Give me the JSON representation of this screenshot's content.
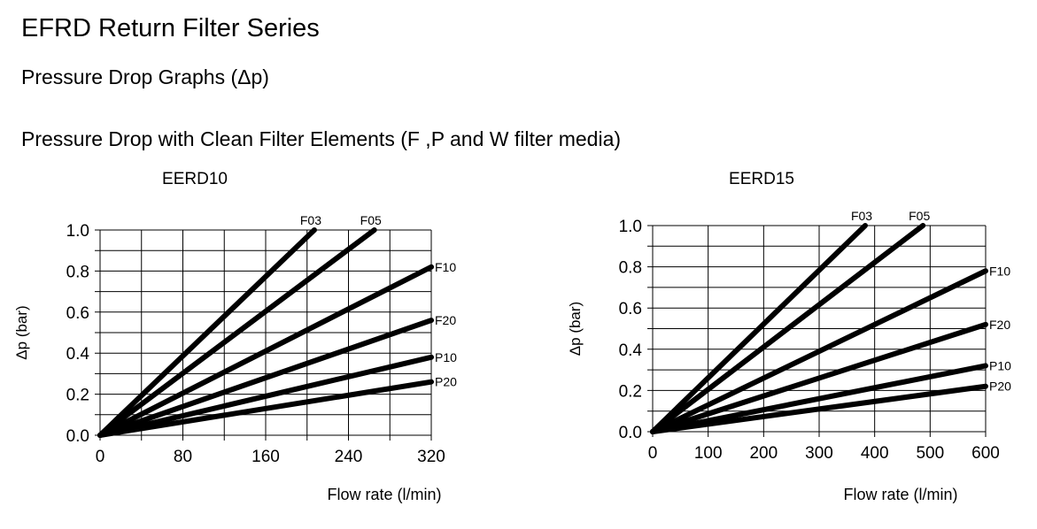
{
  "header": {
    "title": "EFRD Return Filter Series",
    "subtitle": "Pressure Drop Graphs (Δp)",
    "section": "Pressure Drop with Clean Filter Elements (F ,P and W filter media)"
  },
  "chart_data": [
    {
      "type": "line",
      "title": "EERD10",
      "xlabel": "Flow rate (l/min)",
      "ylabel": "Δp (bar)",
      "xlim": [
        0,
        320
      ],
      "ylim": [
        0,
        1.0
      ],
      "xticks": [
        0,
        80,
        160,
        240,
        320
      ],
      "xgrid_step": 40,
      "yticks": [
        0.0,
        0.2,
        0.4,
        0.6,
        0.8,
        1.0
      ],
      "ygrid_step": 0.1,
      "grid": true,
      "series": [
        {
          "name": "F03",
          "x": [
            0,
            207
          ],
          "y": [
            0,
            1.0
          ]
        },
        {
          "name": "F05",
          "x": [
            0,
            265
          ],
          "y": [
            0,
            1.0
          ]
        },
        {
          "name": "F10",
          "x": [
            0,
            320
          ],
          "y": [
            0,
            0.82
          ]
        },
        {
          "name": "F20",
          "x": [
            0,
            320
          ],
          "y": [
            0,
            0.56
          ]
        },
        {
          "name": "P10",
          "x": [
            0,
            320
          ],
          "y": [
            0,
            0.38
          ]
        },
        {
          "name": "P20",
          "x": [
            0,
            320
          ],
          "y": [
            0,
            0.26
          ]
        }
      ]
    },
    {
      "type": "line",
      "title": "EERD15",
      "xlabel": "Flow rate (l/min)",
      "ylabel": "Δp (bar)",
      "xlim": [
        0,
        600
      ],
      "ylim": [
        0,
        1.0
      ],
      "xticks": [
        0,
        100,
        200,
        300,
        400,
        500,
        600
      ],
      "xgrid_step": 100,
      "yticks": [
        0.0,
        0.2,
        0.4,
        0.6,
        0.8,
        1.0
      ],
      "ygrid_step": 0.1,
      "grid": true,
      "series": [
        {
          "name": "F03",
          "x": [
            0,
            383
          ],
          "y": [
            0,
            1.0
          ]
        },
        {
          "name": "F05",
          "x": [
            0,
            487
          ],
          "y": [
            0,
            1.0
          ]
        },
        {
          "name": "F10",
          "x": [
            0,
            600
          ],
          "y": [
            0,
            0.78
          ]
        },
        {
          "name": "F20",
          "x": [
            0,
            600
          ],
          "y": [
            0,
            0.52
          ]
        },
        {
          "name": "P10",
          "x": [
            0,
            600
          ],
          "y": [
            0,
            0.32
          ]
        },
        {
          "name": "P20",
          "x": [
            0,
            600
          ],
          "y": [
            0,
            0.22
          ]
        }
      ]
    }
  ]
}
